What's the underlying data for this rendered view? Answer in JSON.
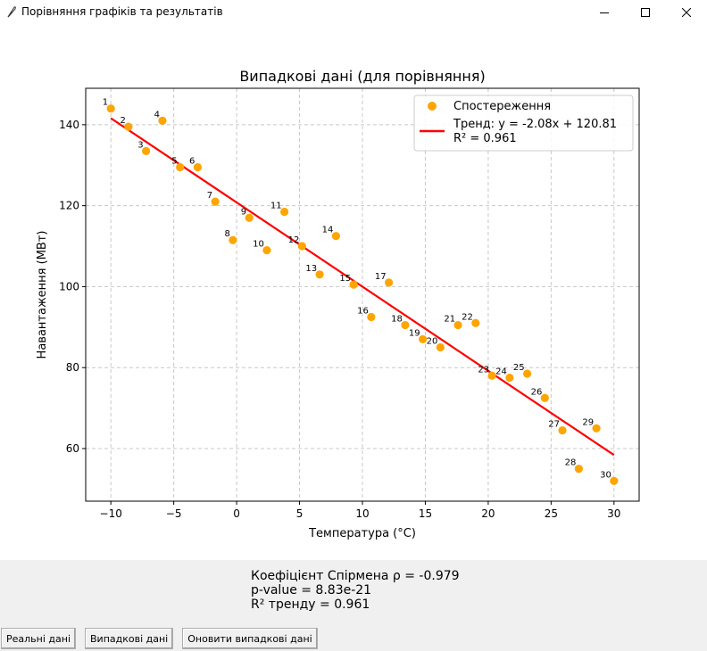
{
  "window": {
    "title": "Порівняння графіків та результатів",
    "icon": "feather-icon",
    "controls": [
      "minimize-icon",
      "maximize-icon",
      "close-icon"
    ]
  },
  "chart_data": {
    "type": "scatter",
    "title": "Випадкові дані (для порівняння)",
    "xlabel": "Температура (°C)",
    "ylabel": "Навантаження (МВт)",
    "xlim": [
      -12,
      32
    ],
    "ylim": [
      47,
      149
    ],
    "xticks": [
      -10,
      -5,
      0,
      5,
      10,
      15,
      20,
      25,
      30
    ],
    "yticks": [
      60,
      80,
      100,
      120,
      140
    ],
    "grid": true,
    "legend_position": "top-right",
    "series": [
      {
        "name": "Спостереження",
        "kind": "scatter",
        "color": "#ffa500",
        "labels": [
          "1",
          "2",
          "3",
          "4",
          "5",
          "6",
          "7",
          "8",
          "9",
          "10",
          "11",
          "12",
          "13",
          "14",
          "15",
          "16",
          "17",
          "18",
          "19",
          "20",
          "21",
          "22",
          "23",
          "24",
          "25",
          "26",
          "27",
          "28",
          "29",
          "30"
        ],
        "x": [
          -10.0,
          -8.6,
          -7.2,
          -5.9,
          -4.5,
          -3.1,
          -1.7,
          -0.3,
          1.0,
          2.4,
          3.8,
          5.2,
          6.6,
          7.9,
          9.3,
          10.7,
          12.1,
          13.4,
          14.8,
          16.2,
          17.6,
          19.0,
          20.3,
          21.7,
          23.1,
          24.5,
          25.9,
          27.2,
          28.6,
          30.0
        ],
        "y": [
          144.0,
          139.5,
          133.5,
          141.0,
          129.5,
          129.5,
          121.0,
          111.5,
          117.0,
          109.0,
          118.5,
          110.0,
          103.0,
          112.5,
          100.5,
          92.5,
          101.0,
          90.5,
          87.0,
          85.0,
          90.5,
          91.0,
          78.0,
          77.5,
          78.5,
          72.5,
          64.5,
          55.0,
          65.0,
          52.0
        ]
      },
      {
        "name": "Тренд: y = -2.08x + 120.81",
        "name_line2": "R² = 0.961",
        "kind": "line",
        "color": "#ff0000",
        "x": [
          -10,
          30
        ],
        "y": [
          141.6,
          58.4
        ]
      }
    ]
  },
  "stats": {
    "spearman": "Коефіцієнт Спірмена ρ = -0.979",
    "pvalue": "p-value = 8.83e-21",
    "r2": "R² тренду = 0.961"
  },
  "buttons": {
    "real": "Реальні дані",
    "random": "Випадкові дані",
    "refresh": "Оновити випадкові дані"
  }
}
